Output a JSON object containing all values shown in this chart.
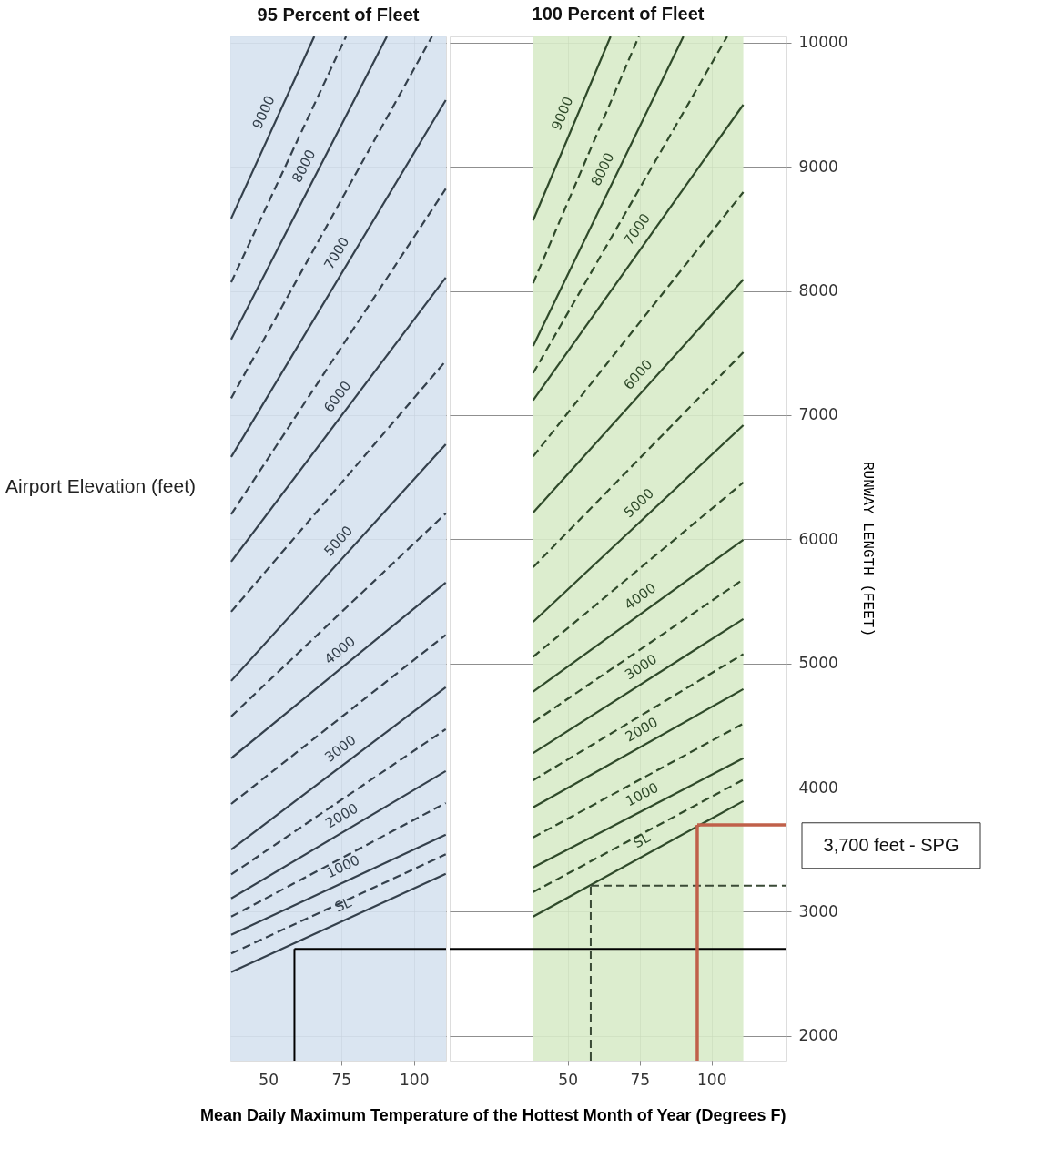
{
  "chart_data": [
    {
      "type": "line",
      "title": "95 Percent of Fleet ",
      "xlabel": "Mean Daily Maximum Temperature of the Hottest Month of Year (Degrees F)",
      "xlim": [
        37,
        111
      ],
      "xticks": [
        50,
        75,
        100
      ],
      "ylim": [
        1800,
        10050
      ],
      "yticks": [
        2000,
        3000,
        4000,
        5000,
        6000,
        7000,
        8000,
        9000,
        10000
      ],
      "tick_labels": "x",
      "grid": true,
      "bands": [
        {
          "axis": "x",
          "from": 37,
          "to": 111,
          "color": "#d6e2ef"
        }
      ],
      "ref_lines": [
        {
          "axis": "x",
          "value": 59,
          "color": "#000000",
          "line_style": "solid"
        },
        {
          "axis": "y",
          "value": 2700,
          "color": "#000000",
          "line_style": "solid"
        }
      ],
      "annotations": [
        "Airport Elevation (feet)"
      ],
      "series": [
        {
          "name": "SL",
          "color": "#34404c",
          "line_style": "solid",
          "x": [
            37.3,
            110.9
          ],
          "values": [
            2513,
            3305
          ]
        },
        {
          "color": "#34404c",
          "line_style": "dashed",
          "x": [
            37.3,
            110.9
          ],
          "values": [
            2663,
            3462
          ]
        },
        {
          "name": "1000",
          "color": "#34404c",
          "line_style": "solid",
          "x": [
            37.3,
            110.9
          ],
          "values": [
            2814,
            3620
          ]
        },
        {
          "color": "#34404c",
          "line_style": "dashed",
          "x": [
            37.3,
            110.9
          ],
          "values": [
            2960,
            3876
          ]
        },
        {
          "name": "2000",
          "color": "#34404c",
          "line_style": "solid",
          "x": [
            37.3,
            110.9
          ],
          "values": [
            3107,
            4133
          ]
        },
        {
          "color": "#34404c",
          "line_style": "dashed",
          "x": [
            37.3,
            110.9
          ],
          "values": [
            3300,
            4470
          ]
        },
        {
          "name": "3000",
          "color": "#34404c",
          "line_style": "solid",
          "x": [
            37.3,
            110.9
          ],
          "values": [
            3500,
            4808
          ]
        },
        {
          "color": "#34404c",
          "line_style": "dashed",
          "x": [
            37.3,
            110.9
          ],
          "values": [
            3868,
            5230
          ]
        },
        {
          "name": "4000",
          "color": "#34404c",
          "line_style": "solid",
          "x": [
            37.3,
            110.9
          ],
          "values": [
            4236,
            5651
          ]
        },
        {
          "color": "#34404c",
          "line_style": "dashed",
          "x": [
            37.3,
            110.9
          ],
          "values": [
            4573,
            6208
          ]
        },
        {
          "name": "5000",
          "color": "#34404c",
          "line_style": "solid",
          "x": [
            37.3,
            110.9
          ],
          "values": [
            4859,
            6765
          ]
        },
        {
          "color": "#34404c",
          "line_style": "dashed",
          "x": [
            37.3,
            110.9
          ],
          "values": [
            5416,
            7436
          ]
        },
        {
          "name": "6000",
          "color": "#34404c",
          "line_style": "solid",
          "x": [
            37.3,
            110.9
          ],
          "values": [
            5820,
            8107
          ]
        },
        {
          "color": "#34404c",
          "line_style": "dashed",
          "x": [
            37.3,
            110.9
          ],
          "values": [
            6201,
            8822
          ]
        },
        {
          "name": "7000",
          "color": "#34404c",
          "line_style": "solid",
          "x": [
            37.3,
            110.9
          ],
          "values": [
            6663,
            9537
          ]
        },
        {
          "color": "#34404c",
          "line_style": "dashed",
          "x": [
            37.3,
            106.2
          ],
          "values": [
            7136,
            10050
          ]
        },
        {
          "name": "8000",
          "color": "#34404c",
          "line_style": "solid",
          "x": [
            37.3,
            90.7
          ],
          "values": [
            7609,
            10050
          ]
        },
        {
          "color": "#34404c",
          "line_style": "dashed",
          "x": [
            37.3,
            76.7
          ],
          "values": [
            8070,
            10050
          ]
        },
        {
          "name": "9000",
          "color": "#34404c",
          "line_style": "solid",
          "x": [
            37.3,
            65.8
          ],
          "values": [
            8584,
            10050
          ]
        }
      ]
    },
    {
      "type": "line",
      "title": "100 Percent of Fleet",
      "ylabel": "RUNWAY LENGTH (FEET)",
      "xlim": [
        9,
        126
      ],
      "xticks": [
        50,
        75,
        100
      ],
      "ylim": [
        1800,
        10050
      ],
      "yticks": [
        2000,
        3000,
        4000,
        5000,
        6000,
        7000,
        8000,
        9000,
        10000
      ],
      "grid": true,
      "bands": [
        {
          "axis": "x",
          "from": 38,
          "to": 111,
          "color": "#d8ebc9"
        }
      ],
      "ref_lines": [
        {
          "axis": "y",
          "value": 2700,
          "color": "#000000",
          "line_style": "solid"
        },
        {
          "axis": "x",
          "value": 58,
          "color": "#3a4a36",
          "line_style": "dashed"
        },
        {
          "axis": "y",
          "value": 3210,
          "color": "#3a4a36",
          "line_style": "dashed"
        },
        {
          "axis": "x",
          "value": 95,
          "color": "#c0604a",
          "line_style": "solid"
        },
        {
          "axis": "y",
          "value": 3700,
          "color": "#c0604a",
          "line_style": "solid"
        }
      ],
      "annotations": [
        "3,700 feet - SPG"
      ],
      "series": [
        {
          "name": "SL",
          "color": "#2f4a2a",
          "line_style": "solid",
          "x": [
            38,
            111
          ],
          "values": [
            2960,
            3891
          ]
        },
        {
          "color": "#2f4a2a",
          "line_style": "dashed",
          "x": [
            38,
            111
          ],
          "values": [
            3158,
            4063
          ]
        },
        {
          "name": "1000",
          "color": "#2f4a2a",
          "line_style": "solid",
          "x": [
            38,
            111
          ],
          "values": [
            3356,
            4236
          ]
        },
        {
          "color": "#2f4a2a",
          "line_style": "dashed",
          "x": [
            38,
            111
          ],
          "values": [
            3598,
            4515
          ]
        },
        {
          "name": "2000",
          "color": "#2f4a2a",
          "line_style": "solid",
          "x": [
            38,
            111
          ],
          "values": [
            3840,
            4793
          ]
        },
        {
          "color": "#2f4a2a",
          "line_style": "dashed",
          "x": [
            38,
            111
          ],
          "values": [
            4059,
            5075
          ]
        },
        {
          "name": "3000",
          "color": "#2f4a2a",
          "line_style": "solid",
          "x": [
            38,
            111
          ],
          "values": [
            4278,
            5358
          ]
        },
        {
          "color": "#2f4a2a",
          "line_style": "dashed",
          "x": [
            38,
            111
          ],
          "values": [
            4525,
            5677
          ]
        },
        {
          "name": "4000",
          "color": "#2f4a2a",
          "line_style": "solid",
          "x": [
            38,
            111
          ],
          "values": [
            4772,
            5996
          ]
        },
        {
          "color": "#2f4a2a",
          "line_style": "dashed",
          "x": [
            38,
            111
          ],
          "values": [
            5053,
            6457
          ]
        },
        {
          "name": "5000",
          "color": "#2f4a2a",
          "line_style": "solid",
          "x": [
            38,
            111
          ],
          "values": [
            5335,
            6919
          ]
        },
        {
          "color": "#2f4a2a",
          "line_style": "dashed",
          "x": [
            38,
            111
          ],
          "values": [
            5775,
            7505
          ]
        },
        {
          "name": "6000",
          "color": "#2f4a2a",
          "line_style": "solid",
          "x": [
            38,
            111
          ],
          "values": [
            6215,
            8092
          ]
        },
        {
          "color": "#2f4a2a",
          "line_style": "dashed",
          "x": [
            38,
            111
          ],
          "values": [
            6667,
            8796
          ]
        },
        {
          "name": "7000",
          "color": "#2f4a2a",
          "line_style": "solid",
          "x": [
            38,
            111
          ],
          "values": [
            7120,
            9500
          ]
        },
        {
          "color": "#2f4a2a",
          "line_style": "dashed",
          "x": [
            38,
            105.4
          ],
          "values": [
            7338,
            10050
          ]
        },
        {
          "name": "8000",
          "color": "#2f4a2a",
          "line_style": "solid",
          "x": [
            38,
            90.2
          ],
          "values": [
            7557,
            10050
          ]
        },
        {
          "color": "#2f4a2a",
          "line_style": "dashed",
          "x": [
            38,
            74.7
          ],
          "values": [
            8063,
            10050
          ]
        },
        {
          "name": "9000",
          "color": "#2f4a2a",
          "line_style": "solid",
          "x": [
            38,
            64.9
          ],
          "values": [
            8569,
            10050
          ]
        }
      ]
    }
  ]
}
